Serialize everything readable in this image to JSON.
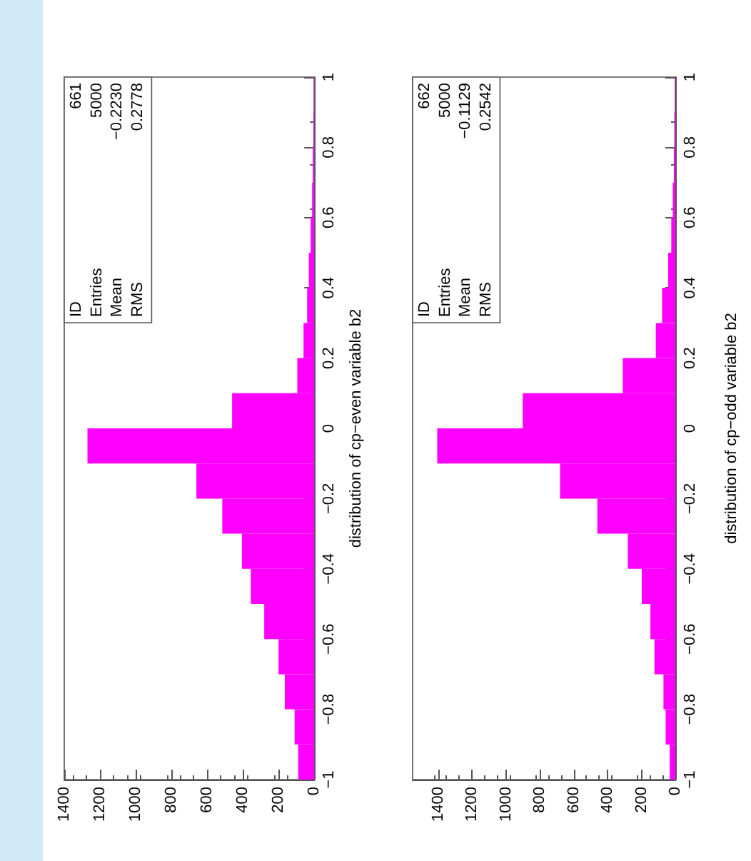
{
  "chart_data": [
    {
      "type": "histogram",
      "orientation": "horizontal",
      "ylabel": "distribution of cp−even variable b2",
      "color": "#ff00ff",
      "bins": [
        -1,
        -0.9,
        -0.8,
        -0.7,
        -0.6,
        -0.5,
        -0.4,
        -0.3,
        -0.2,
        -0.1,
        0,
        0.1,
        0.2,
        0.3,
        0.4,
        0.5,
        0.6,
        0.7,
        0.8,
        0.9,
        1
      ],
      "values": [
        90,
        110,
        165,
        200,
        280,
        355,
        405,
        515,
        660,
        1270,
        460,
        95,
        60,
        40,
        30,
        20,
        12,
        8,
        5,
        3
      ],
      "ylim": [
        -1,
        1
      ],
      "yticks": [
        -1,
        -0.8,
        -0.6,
        -0.4,
        -0.2,
        0,
        0.2,
        0.4,
        0.6,
        0.8,
        1
      ],
      "xlim": [
        1400,
        0
      ],
      "xticks": [
        0,
        200,
        400,
        600,
        800,
        1000,
        1200,
        1400
      ],
      "annotations": [
        "ID",
        "Entries",
        "Mean",
        "RMS",
        "661",
        "5000",
        "−0.2230",
        "0.2778"
      ]
    },
    {
      "type": "histogram",
      "orientation": "horizontal",
      "ylabel": "distribution of cp−odd variable b2",
      "color": "#ff00ff",
      "bins": [
        -1,
        -0.9,
        -0.8,
        -0.7,
        -0.6,
        -0.5,
        -0.4,
        -0.3,
        -0.2,
        -0.1,
        0,
        0.1,
        0.2,
        0.3,
        0.4,
        0.5,
        0.6,
        0.7,
        0.8,
        0.9,
        1
      ],
      "values": [
        33,
        57,
        70,
        123,
        147,
        198,
        280,
        460,
        680,
        1405,
        900,
        310,
        115,
        78,
        42,
        24,
        15,
        9,
        6,
        3
      ],
      "ylim": [
        -1,
        1
      ],
      "yticks": [
        -1,
        -0.8,
        -0.6,
        -0.4,
        -0.2,
        0,
        0.2,
        0.4,
        0.6,
        0.8,
        1
      ],
      "xlim": [
        1550,
        0
      ],
      "xticks": [
        0,
        200,
        400,
        600,
        800,
        1000,
        1200,
        1400
      ],
      "annotations": [
        "ID",
        "Entries",
        "Mean",
        "RMS",
        "662",
        "5000",
        "−0.1129",
        "0.2542"
      ]
    }
  ]
}
